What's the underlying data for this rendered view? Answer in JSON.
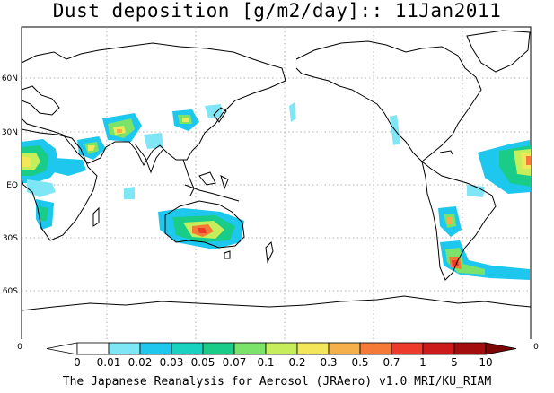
{
  "title": "Dust deposition [g/m2/day]:: 11Jan2011",
  "credit": "The Japanese Reanalysis for Aerosol (JRAero) v1.0 MRI/KU_RIAM",
  "map": {
    "lat_labels": [
      "60N",
      "30N",
      "EQ",
      "30S",
      "60S"
    ],
    "edge_label_left": "0",
    "edge_label_right": "0"
  },
  "legend": {
    "labels": [
      "0",
      "0.01",
      "0.02",
      "0.03",
      "0.05",
      "0.07",
      "0.1",
      "0.2",
      "0.3",
      "0.5",
      "0.7",
      "1",
      "5",
      "10"
    ],
    "colors": [
      "#ffffff",
      "#ffffff",
      "#7ee6f5",
      "#1ec7ee",
      "#19d3c0",
      "#19cc88",
      "#7be36a",
      "#c5ee5a",
      "#f2e75a",
      "#f5b04b",
      "#f57a37",
      "#ee3a2a",
      "#cc1a1a",
      "#a30d0d",
      "#7a0606"
    ]
  },
  "colors": {
    "coast": "#000000",
    "grid": "#9a9a9a"
  }
}
